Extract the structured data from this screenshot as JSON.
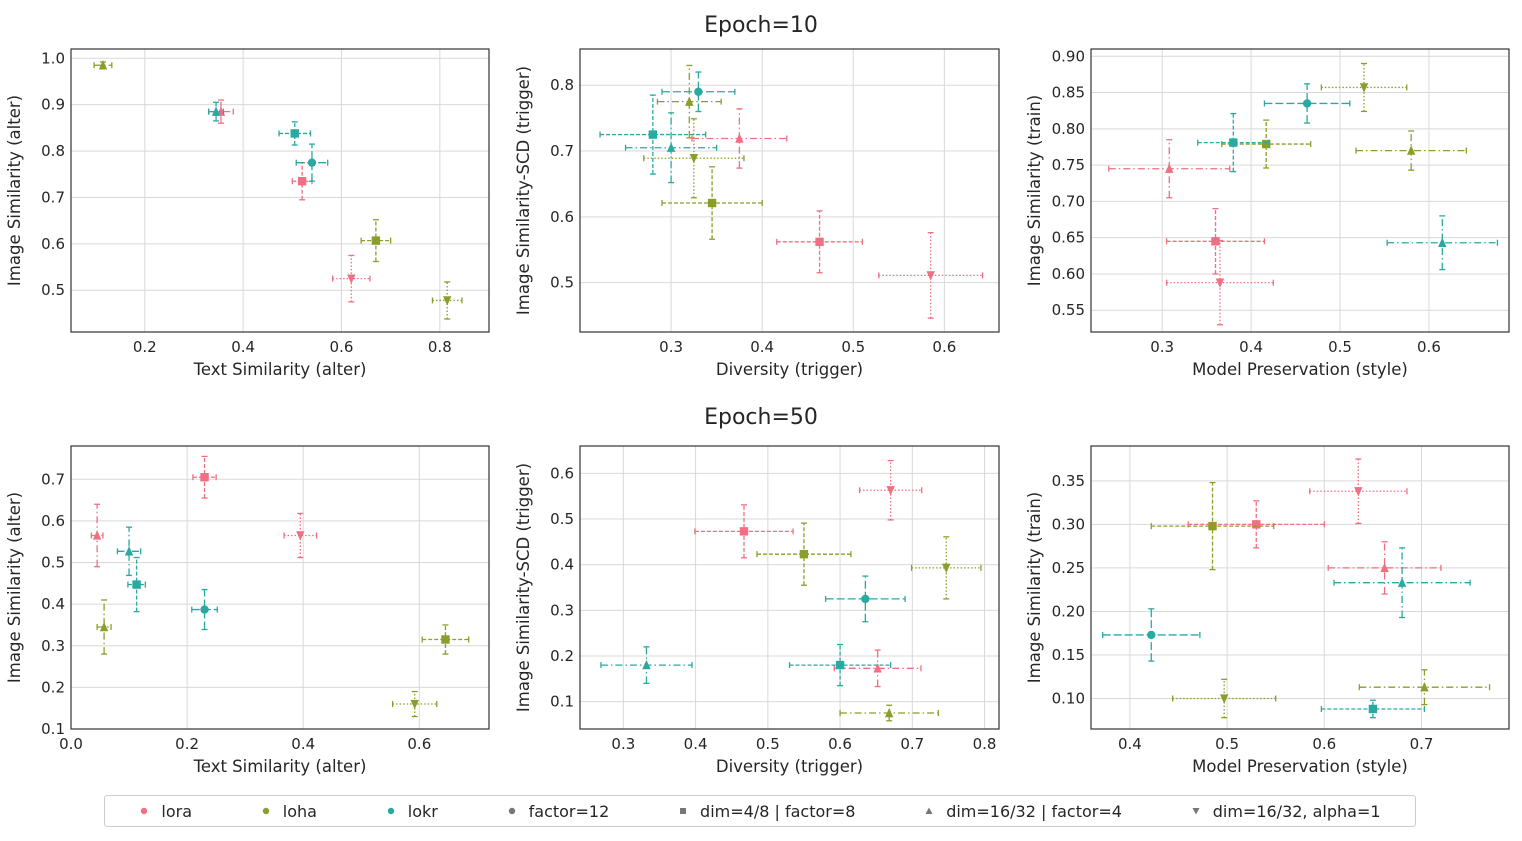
{
  "colors": {
    "lora": "#ef6f83",
    "loha": "#8b9e2a",
    "lokr": "#2aa9a1"
  },
  "row_titles": [
    "Epoch=10",
    "Epoch=50"
  ],
  "legend": [
    {
      "label": "lora",
      "color": "#ef6f83",
      "marker": "circle"
    },
    {
      "label": "loha",
      "color": "#8b9e2a",
      "marker": "circle"
    },
    {
      "label": "lokr",
      "color": "#2aa9a1",
      "marker": "circle"
    },
    {
      "label": "factor=12",
      "color": "#777777",
      "marker": "circle"
    },
    {
      "label": "dim=4/8 | factor=8",
      "color": "#777777",
      "marker": "square"
    },
    {
      "label": "dim=16/32 | factor=4",
      "color": "#777777",
      "marker": "triangle"
    },
    {
      "label": "dim=16/32, alpha=1",
      "color": "#777777",
      "marker": "triangle-down"
    }
  ],
  "chart_data": [
    {
      "type": "scatter",
      "title": "Epoch=10",
      "xlabel": "Text Similarity (alter)",
      "ylabel": "Image Similarity (alter)",
      "xlim": [
        0.05,
        0.9
      ],
      "ylim": [
        0.41,
        1.02
      ],
      "xticks": [
        "0.2",
        "0.4",
        "0.6",
        "0.8"
      ],
      "xtick_values": [
        0.2,
        0.4,
        0.6,
        0.8
      ],
      "yticks": [
        "0.5",
        "0.6",
        "0.7",
        "0.8",
        "0.9",
        "1.0"
      ],
      "ytick_values": [
        0.5,
        0.6,
        0.7,
        0.8,
        0.9,
        1.0
      ],
      "points": [
        {
          "series": "lora",
          "marker": "square",
          "x": 0.52,
          "y": 0.735,
          "xerr": 0.02,
          "yerr": 0.04
        },
        {
          "series": "lora",
          "marker": "triangle",
          "x": 0.355,
          "y": 0.885,
          "xerr": 0.025,
          "yerr": 0.025
        },
        {
          "series": "lora",
          "marker": "triangle-down",
          "x": 0.62,
          "y": 0.525,
          "xerr": 0.038,
          "yerr": 0.05
        },
        {
          "series": "loha",
          "marker": "square",
          "x": 0.67,
          "y": 0.607,
          "xerr": 0.03,
          "yerr": 0.045
        },
        {
          "series": "loha",
          "marker": "triangle",
          "x": 0.115,
          "y": 0.985,
          "xerr": 0.018,
          "yerr": 0.007
        },
        {
          "series": "loha",
          "marker": "triangle-down",
          "x": 0.815,
          "y": 0.478,
          "xerr": 0.03,
          "yerr": 0.04
        },
        {
          "series": "lokr",
          "marker": "circle",
          "x": 0.54,
          "y": 0.775,
          "xerr": 0.032,
          "yerr": 0.04
        },
        {
          "series": "lokr",
          "marker": "square",
          "x": 0.505,
          "y": 0.838,
          "xerr": 0.032,
          "yerr": 0.025
        },
        {
          "series": "lokr",
          "marker": "triangle",
          "x": 0.345,
          "y": 0.885,
          "xerr": 0.015,
          "yerr": 0.02
        }
      ]
    },
    {
      "type": "scatter",
      "title": "",
      "xlabel": "Diversity (trigger)",
      "ylabel": "Image Similarity-SCD (trigger)",
      "xlim": [
        0.2,
        0.66
      ],
      "ylim": [
        0.425,
        0.855
      ],
      "xticks": [
        "0.3",
        "0.4",
        "0.5",
        "0.6"
      ],
      "xtick_values": [
        0.3,
        0.4,
        0.5,
        0.6
      ],
      "yticks": [
        "0.5",
        "0.6",
        "0.7",
        "0.8"
      ],
      "ytick_values": [
        0.5,
        0.6,
        0.7,
        0.8
      ],
      "points": [
        {
          "series": "lora",
          "marker": "square",
          "x": 0.463,
          "y": 0.562,
          "xerr": 0.047,
          "yerr": 0.047
        },
        {
          "series": "lora",
          "marker": "triangle",
          "x": 0.375,
          "y": 0.719,
          "xerr": 0.052,
          "yerr": 0.045
        },
        {
          "series": "lora",
          "marker": "triangle-down",
          "x": 0.585,
          "y": 0.511,
          "xerr": 0.057,
          "yerr": 0.065
        },
        {
          "series": "loha",
          "marker": "square",
          "x": 0.345,
          "y": 0.621,
          "xerr": 0.055,
          "yerr": 0.055
        },
        {
          "series": "loha",
          "marker": "triangle",
          "x": 0.32,
          "y": 0.775,
          "xerr": 0.035,
          "yerr": 0.055
        },
        {
          "series": "loha",
          "marker": "triangle-down",
          "x": 0.325,
          "y": 0.689,
          "xerr": 0.055,
          "yerr": 0.06
        },
        {
          "series": "lokr",
          "marker": "circle",
          "x": 0.33,
          "y": 0.79,
          "xerr": 0.04,
          "yerr": 0.03
        },
        {
          "series": "lokr",
          "marker": "square",
          "x": 0.28,
          "y": 0.725,
          "xerr": 0.058,
          "yerr": 0.06
        },
        {
          "series": "lokr",
          "marker": "triangle",
          "x": 0.3,
          "y": 0.705,
          "xerr": 0.05,
          "yerr": 0.053
        }
      ]
    },
    {
      "type": "scatter",
      "title": "",
      "xlabel": "Model Preservation (style)",
      "ylabel": "Image Similarity (train)",
      "xlim": [
        0.22,
        0.69
      ],
      "ylim": [
        0.52,
        0.91
      ],
      "xticks": [
        "0.3",
        "0.4",
        "0.5",
        "0.6"
      ],
      "xtick_values": [
        0.3,
        0.4,
        0.5,
        0.6
      ],
      "yticks": [
        "0.55",
        "0.60",
        "0.65",
        "0.70",
        "0.75",
        "0.80",
        "0.85",
        "0.90"
      ],
      "ytick_values": [
        0.55,
        0.6,
        0.65,
        0.7,
        0.75,
        0.8,
        0.85,
        0.9
      ],
      "points": [
        {
          "series": "lora",
          "marker": "square",
          "x": 0.36,
          "y": 0.645,
          "xerr": 0.055,
          "yerr": 0.045
        },
        {
          "series": "lora",
          "marker": "triangle",
          "x": 0.308,
          "y": 0.745,
          "xerr": 0.068,
          "yerr": 0.04
        },
        {
          "series": "lora",
          "marker": "triangle-down",
          "x": 0.365,
          "y": 0.588,
          "xerr": 0.06,
          "yerr": 0.058
        },
        {
          "series": "loha",
          "marker": "square",
          "x": 0.417,
          "y": 0.779,
          "xerr": 0.05,
          "yerr": 0.033
        },
        {
          "series": "loha",
          "marker": "triangle",
          "x": 0.58,
          "y": 0.77,
          "xerr": 0.062,
          "yerr": 0.027
        },
        {
          "series": "loha",
          "marker": "triangle-down",
          "x": 0.527,
          "y": 0.857,
          "xerr": 0.048,
          "yerr": 0.033
        },
        {
          "series": "lokr",
          "marker": "circle",
          "x": 0.463,
          "y": 0.835,
          "xerr": 0.048,
          "yerr": 0.027
        },
        {
          "series": "lokr",
          "marker": "square",
          "x": 0.38,
          "y": 0.781,
          "xerr": 0.04,
          "yerr": 0.04
        },
        {
          "series": "lokr",
          "marker": "triangle",
          "x": 0.615,
          "y": 0.643,
          "xerr": 0.062,
          "yerr": 0.037
        }
      ]
    },
    {
      "type": "scatter",
      "title": "Epoch=50",
      "xlabel": "Text Similarity (alter)",
      "ylabel": "Image Similarity (alter)",
      "xlim": [
        0.0,
        0.72
      ],
      "ylim": [
        0.1,
        0.78
      ],
      "xticks": [
        "0.0",
        "0.2",
        "0.4",
        "0.6"
      ],
      "xtick_values": [
        0.0,
        0.2,
        0.4,
        0.6
      ],
      "yticks": [
        "0.1",
        "0.2",
        "0.3",
        "0.4",
        "0.5",
        "0.6",
        "0.7"
      ],
      "ytick_values": [
        0.1,
        0.2,
        0.3,
        0.4,
        0.5,
        0.6,
        0.7
      ],
      "points": [
        {
          "series": "lora",
          "marker": "square",
          "x": 0.23,
          "y": 0.705,
          "xerr": 0.02,
          "yerr": 0.05
        },
        {
          "series": "lora",
          "marker": "triangle",
          "x": 0.045,
          "y": 0.565,
          "xerr": 0.01,
          "yerr": 0.075
        },
        {
          "series": "lora",
          "marker": "triangle-down",
          "x": 0.395,
          "y": 0.565,
          "xerr": 0.028,
          "yerr": 0.053
        },
        {
          "series": "loha",
          "marker": "square",
          "x": 0.645,
          "y": 0.315,
          "xerr": 0.04,
          "yerr": 0.035
        },
        {
          "series": "loha",
          "marker": "triangle",
          "x": 0.057,
          "y": 0.345,
          "xerr": 0.012,
          "yerr": 0.065
        },
        {
          "series": "loha",
          "marker": "triangle-down",
          "x": 0.592,
          "y": 0.16,
          "xerr": 0.038,
          "yerr": 0.03
        },
        {
          "series": "lokr",
          "marker": "circle",
          "x": 0.23,
          "y": 0.387,
          "xerr": 0.022,
          "yerr": 0.048
        },
        {
          "series": "lokr",
          "marker": "square",
          "x": 0.113,
          "y": 0.447,
          "xerr": 0.015,
          "yerr": 0.065
        },
        {
          "series": "lokr",
          "marker": "triangle",
          "x": 0.1,
          "y": 0.527,
          "xerr": 0.02,
          "yerr": 0.058
        }
      ]
    },
    {
      "type": "scatter",
      "title": "",
      "xlabel": "Diversity (trigger)",
      "ylabel": "Image Similarity-SCD (trigger)",
      "xlim": [
        0.24,
        0.82
      ],
      "ylim": [
        0.04,
        0.66
      ],
      "xticks": [
        "0.3",
        "0.4",
        "0.5",
        "0.6",
        "0.7",
        "0.8"
      ],
      "xtick_values": [
        0.3,
        0.4,
        0.5,
        0.6,
        0.7,
        0.8
      ],
      "yticks": [
        "0.1",
        "0.2",
        "0.3",
        "0.4",
        "0.5",
        "0.6"
      ],
      "ytick_values": [
        0.1,
        0.2,
        0.3,
        0.4,
        0.5,
        0.6
      ],
      "points": [
        {
          "series": "lora",
          "marker": "square",
          "x": 0.467,
          "y": 0.473,
          "xerr": 0.068,
          "yerr": 0.058
        },
        {
          "series": "lora",
          "marker": "triangle",
          "x": 0.652,
          "y": 0.173,
          "xerr": 0.06,
          "yerr": 0.04
        },
        {
          "series": "lora",
          "marker": "triangle-down",
          "x": 0.67,
          "y": 0.563,
          "xerr": 0.043,
          "yerr": 0.065
        },
        {
          "series": "loha",
          "marker": "square",
          "x": 0.55,
          "y": 0.423,
          "xerr": 0.065,
          "yerr": 0.068
        },
        {
          "series": "loha",
          "marker": "triangle",
          "x": 0.668,
          "y": 0.075,
          "xerr": 0.068,
          "yerr": 0.017
        },
        {
          "series": "loha",
          "marker": "triangle-down",
          "x": 0.747,
          "y": 0.393,
          "xerr": 0.048,
          "yerr": 0.068
        },
        {
          "series": "lokr",
          "marker": "circle",
          "x": 0.635,
          "y": 0.325,
          "xerr": 0.055,
          "yerr": 0.05
        },
        {
          "series": "lokr",
          "marker": "square",
          "x": 0.6,
          "y": 0.18,
          "xerr": 0.07,
          "yerr": 0.045
        },
        {
          "series": "lokr",
          "marker": "triangle",
          "x": 0.332,
          "y": 0.18,
          "xerr": 0.063,
          "yerr": 0.04
        }
      ]
    },
    {
      "type": "scatter",
      "title": "",
      "xlabel": "Model Preservation (style)",
      "ylabel": "Image Similarity (train)",
      "xlim": [
        0.36,
        0.79
      ],
      "ylim": [
        0.065,
        0.39
      ],
      "xticks": [
        "0.4",
        "0.5",
        "0.6",
        "0.7"
      ],
      "xtick_values": [
        0.4,
        0.5,
        0.6,
        0.7
      ],
      "yticks": [
        "0.10",
        "0.15",
        "0.20",
        "0.25",
        "0.30",
        "0.35"
      ],
      "ytick_values": [
        0.1,
        0.15,
        0.2,
        0.25,
        0.3,
        0.35
      ],
      "points": [
        {
          "series": "lora",
          "marker": "square",
          "x": 0.53,
          "y": 0.3,
          "xerr": 0.07,
          "yerr": 0.027
        },
        {
          "series": "lora",
          "marker": "triangle",
          "x": 0.662,
          "y": 0.25,
          "xerr": 0.058,
          "yerr": 0.03
        },
        {
          "series": "lora",
          "marker": "triangle-down",
          "x": 0.635,
          "y": 0.338,
          "xerr": 0.05,
          "yerr": 0.037
        },
        {
          "series": "loha",
          "marker": "square",
          "x": 0.485,
          "y": 0.298,
          "xerr": 0.063,
          "yerr": 0.05
        },
        {
          "series": "loha",
          "marker": "triangle",
          "x": 0.703,
          "y": 0.113,
          "xerr": 0.067,
          "yerr": 0.02
        },
        {
          "series": "loha",
          "marker": "triangle-down",
          "x": 0.497,
          "y": 0.1,
          "xerr": 0.053,
          "yerr": 0.022
        },
        {
          "series": "lokr",
          "marker": "circle",
          "x": 0.422,
          "y": 0.173,
          "xerr": 0.05,
          "yerr": 0.03
        },
        {
          "series": "lokr",
          "marker": "square",
          "x": 0.65,
          "y": 0.088,
          "xerr": 0.053,
          "yerr": 0.01
        },
        {
          "series": "lokr",
          "marker": "triangle",
          "x": 0.68,
          "y": 0.233,
          "xerr": 0.07,
          "yerr": 0.04
        }
      ]
    }
  ]
}
